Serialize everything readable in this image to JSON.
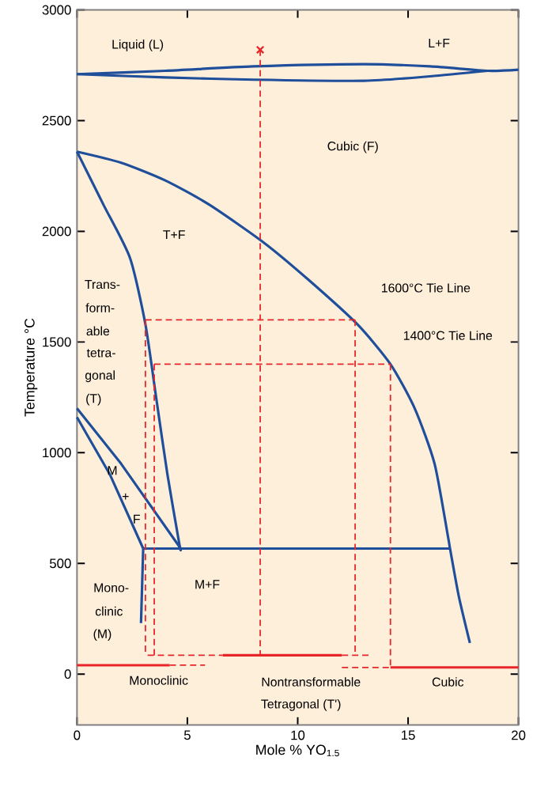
{
  "chart_data": {
    "type": "line",
    "xlabel": "Mole % YO$_{1.5}$",
    "ylabel": "Temperature °C",
    "xlim": [
      0,
      20
    ],
    "ylim": [
      -230,
      3000
    ],
    "xticks": [
      0,
      5,
      10,
      15,
      20
    ],
    "yticks": [
      0,
      500,
      1000,
      1500,
      2000,
      2500,
      3000
    ],
    "series": [
      {
        "color": "#1f4e9a",
        "line_style": "solid",
        "x": [
          0,
          4,
          8,
          13,
          16,
          18.6,
          20
        ],
        "values": [
          2710,
          2725,
          2745,
          2755,
          2745,
          2725,
          2730
        ]
      },
      {
        "color": "#1f4e9a",
        "line_style": "solid",
        "x": [
          0,
          4,
          8,
          13,
          16,
          18.6
        ],
        "values": [
          2710,
          2695,
          2685,
          2680,
          2700,
          2725
        ]
      },
      {
        "color": "#1f4e9a",
        "line_style": "solid",
        "x": [
          0,
          2,
          4,
          6,
          8.45,
          10.5,
          12.7,
          14.2,
          15.3,
          16.2,
          16.8,
          16.9,
          17.3,
          17.8
        ],
        "values": [
          2360,
          2310,
          2230,
          2120,
          1950,
          1780,
          1580,
          1400,
          1200,
          950,
          625,
          567,
          350,
          140
        ]
      },
      {
        "color": "#1f4e9a",
        "line_style": "solid",
        "x": [
          0,
          1.2,
          2.4,
          3.1,
          3.6,
          4.1,
          4.65,
          4.7
        ],
        "values": [
          2360,
          2120,
          1880,
          1580,
          1240,
          900,
          580,
          567
        ]
      },
      {
        "color": "#1f4e9a",
        "line_style": "solid",
        "x": [
          0,
          2,
          4.7
        ],
        "values": [
          1200,
          950,
          567
        ]
      },
      {
        "color": "#1f4e9a",
        "line_style": "solid",
        "x": [
          0,
          1.5,
          3
        ],
        "values": [
          1160,
          900,
          567
        ]
      },
      {
        "color": "#1f4e9a",
        "line_style": "solid",
        "x": [
          3,
          2.9
        ],
        "values": [
          567,
          230
        ]
      },
      {
        "color": "#1f4e9a",
        "line_style": "solid",
        "x": [
          3,
          16.9
        ],
        "values": [
          567,
          567
        ]
      },
      {
        "color": "#e8262a",
        "line_style": "solid",
        "x": [
          0,
          4.2
        ],
        "values": [
          40,
          40
        ]
      },
      {
        "color": "#e8262a",
        "line_style": "dashed",
        "x": [
          4.2,
          5.8
        ],
        "values": [
          40,
          40
        ]
      },
      {
        "color": "#e8262a",
        "line_style": "dashed",
        "x": [
          3.2,
          6.6
        ],
        "values": [
          85,
          85
        ]
      },
      {
        "color": "#e8262a",
        "line_style": "solid",
        "x": [
          6.6,
          12.0
        ],
        "values": [
          85,
          85
        ]
      },
      {
        "color": "#e8262a",
        "line_style": "dashed",
        "x": [
          12.0,
          13.3
        ],
        "values": [
          85,
          85
        ]
      },
      {
        "color": "#e8262a",
        "line_style": "dashed",
        "x": [
          12.0,
          14.2
        ],
        "values": [
          30,
          30
        ]
      },
      {
        "color": "#e8262a",
        "line_style": "solid",
        "x": [
          14.2,
          20
        ],
        "values": [
          30,
          30
        ]
      },
      {
        "color": "#e8262a",
        "line_style": "dashed",
        "x": [
          3.1,
          12.6
        ],
        "values": [
          1600,
          1600
        ]
      },
      {
        "color": "#e8262a",
        "line_style": "dashed",
        "x": [
          3.5,
          14.2
        ],
        "values": [
          1400,
          1400
        ]
      },
      {
        "color": "#e8262a",
        "line_style": "dashed",
        "x": [
          3.1,
          3.1
        ],
        "values": [
          1600,
          85
        ]
      },
      {
        "color": "#e8262a",
        "line_style": "dashed",
        "x": [
          3.5,
          3.5
        ],
        "values": [
          1400,
          85
        ]
      },
      {
        "color": "#e8262a",
        "line_style": "dashed",
        "x": [
          8.3,
          8.3
        ],
        "values": [
          2820,
          85
        ]
      },
      {
        "color": "#e8262a",
        "line_style": "dashed",
        "x": [
          12.6,
          12.6
        ],
        "values": [
          1600,
          85
        ]
      },
      {
        "color": "#e8262a",
        "line_style": "dashed",
        "x": [
          14.2,
          14.2
        ],
        "values": [
          1400,
          30
        ]
      },
      {
        "type": "scatter",
        "marker": "cross",
        "color": "#e8262a",
        "x": [
          8.3
        ],
        "values": [
          2820
        ]
      }
    ],
    "annotations": [
      "Liquid (L)",
      "L+F",
      "Cubic (F)",
      "T+F",
      "Trans-",
      "form-",
      "able",
      "tetra-",
      "gonal",
      "(T)",
      "1600°C Tie Line",
      "1400°C Tie Line",
      "M",
      "+",
      "F",
      "Mono-",
      "clinic",
      "(M)",
      "M+F",
      "Monoclinic",
      "Nontransformable",
      "Tetragonal (T')",
      "Cubic"
    ]
  }
}
